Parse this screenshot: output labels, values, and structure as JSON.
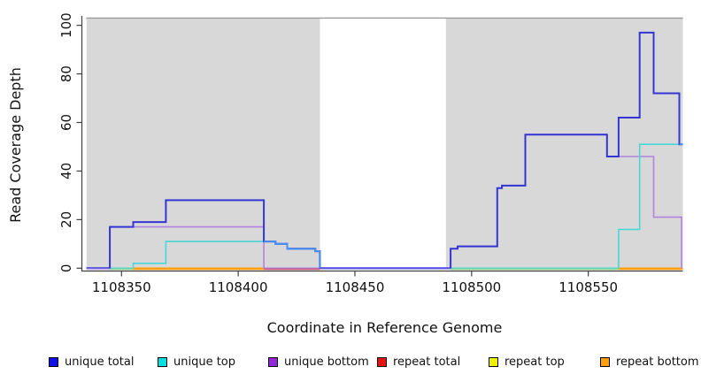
{
  "chart_data": {
    "type": "line",
    "variant": "step-coverage-plot",
    "title": "",
    "xlabel": "Coordinate in Reference Genome",
    "ylabel": "Read Coverage Depth",
    "xlim": [
      1108335,
      1108591
    ],
    "ylim": [
      0,
      103
    ],
    "x_ticks": [
      1108350,
      1108400,
      1108450,
      1108500,
      1108550
    ],
    "y_ticks": [
      0,
      20,
      40,
      60,
      80,
      100
    ],
    "grid": false,
    "legend_position": "bottom",
    "shaded_regions": [
      {
        "from": 1108335,
        "to": 1108435,
        "color": "#d8d8d8"
      },
      {
        "from": 1108489,
        "to": 1108591,
        "color": "#d8d8d8"
      }
    ],
    "top_boundary_line": {
      "y": 103,
      "color": "#9a9a9a"
    },
    "series": [
      {
        "name": "repeat top",
        "color": "#eded00",
        "width": 1.6,
        "steps": [
          [
            1108335,
            0
          ],
          [
            1108591,
            0
          ]
        ]
      },
      {
        "name": "repeat total",
        "color": "#e01111",
        "width": 1.6,
        "steps": [
          [
            1108335,
            0
          ],
          [
            1108591,
            0
          ]
        ]
      },
      {
        "name": "repeat bottom",
        "color": "#ffa010",
        "width": 1.6,
        "steps": [
          [
            1108335,
            0
          ],
          [
            1108591,
            0
          ]
        ]
      },
      {
        "name": "unique bottom",
        "color": "#b183e0",
        "width": 1.6,
        "steps": [
          [
            1108335,
            0
          ],
          [
            1108345,
            17
          ],
          [
            1108411,
            0
          ],
          [
            1108491,
            8
          ],
          [
            1108494,
            9
          ],
          [
            1108511,
            33
          ],
          [
            1108513,
            34
          ],
          [
            1108523,
            55
          ],
          [
            1108558,
            46
          ],
          [
            1108578,
            21
          ],
          [
            1108590,
            0
          ],
          [
            1108591,
            0
          ]
        ]
      },
      {
        "name": "unique top",
        "color": "#49d6d6",
        "width": 1.6,
        "steps": [
          [
            1108335,
            0
          ],
          [
            1108355,
            2
          ],
          [
            1108369,
            11
          ],
          [
            1108416,
            10
          ],
          [
            1108421,
            8
          ],
          [
            1108433,
            7
          ],
          [
            1108435,
            0
          ],
          [
            1108563,
            16
          ],
          [
            1108572,
            51
          ],
          [
            1108591,
            51
          ]
        ]
      },
      {
        "name": "unique total",
        "color": "#3535d4",
        "width": 2,
        "steps": [
          [
            1108335,
            0
          ],
          [
            1108345,
            17
          ],
          [
            1108355,
            19
          ],
          [
            1108369,
            28
          ],
          [
            1108411,
            11
          ],
          [
            1108416,
            10
          ],
          [
            1108421,
            8
          ],
          [
            1108433,
            7
          ],
          [
            1108435,
            0
          ],
          [
            1108491,
            8
          ],
          [
            1108494,
            9
          ],
          [
            1108511,
            33
          ],
          [
            1108513,
            34
          ],
          [
            1108523,
            55
          ],
          [
            1108558,
            46
          ],
          [
            1108563,
            62
          ],
          [
            1108572,
            97
          ],
          [
            1108578,
            72
          ],
          [
            1108589,
            51
          ],
          [
            1108591,
            51
          ]
        ]
      }
    ],
    "overlap_highlights": [
      {
        "note": "unique total coincides with unique top",
        "color": "#4a8df0",
        "width": 2,
        "steps": [
          [
            1108411,
            11
          ],
          [
            1108416,
            10
          ],
          [
            1108421,
            8
          ],
          [
            1108433,
            7
          ],
          [
            1108435,
            0
          ]
        ]
      },
      {
        "note": "unique total coincides with unique top",
        "color": "#4a8df0",
        "width": 2,
        "steps": [
          [
            1108589,
            51
          ],
          [
            1108591,
            51
          ]
        ]
      }
    ],
    "baseline_zero_segments": [
      {
        "from": 1108335,
        "to": 1108345,
        "color": "#c9aef2",
        "emphasis": false
      },
      {
        "from": 1108345,
        "to": 1108355,
        "color": "#8fd48f",
        "emphasis": false
      },
      {
        "from": 1108355,
        "to": 1108411,
        "color": "#ffa010",
        "emphasis": false
      },
      {
        "from": 1108411,
        "to": 1108435,
        "color": "#cc5577",
        "emphasis": false
      },
      {
        "from": 1108435,
        "to": 1108491,
        "color": "#5c54e6",
        "emphasis": true
      },
      {
        "from": 1108491,
        "to": 1108563,
        "color": "#8fd48f",
        "emphasis": false
      },
      {
        "from": 1108563,
        "to": 1108591,
        "color": "#ffa010",
        "emphasis": false
      }
    ]
  },
  "legend": {
    "items": [
      {
        "label": "unique total",
        "color": "#0f0fe8"
      },
      {
        "label": "unique top",
        "color": "#00e0e0"
      },
      {
        "label": "unique bottom",
        "color": "#9326d9"
      },
      {
        "label": "repeat total",
        "color": "#ea1111"
      },
      {
        "label": "repeat top",
        "color": "#f0f000"
      },
      {
        "label": "repeat bottom",
        "color": "#ffa010"
      }
    ]
  }
}
